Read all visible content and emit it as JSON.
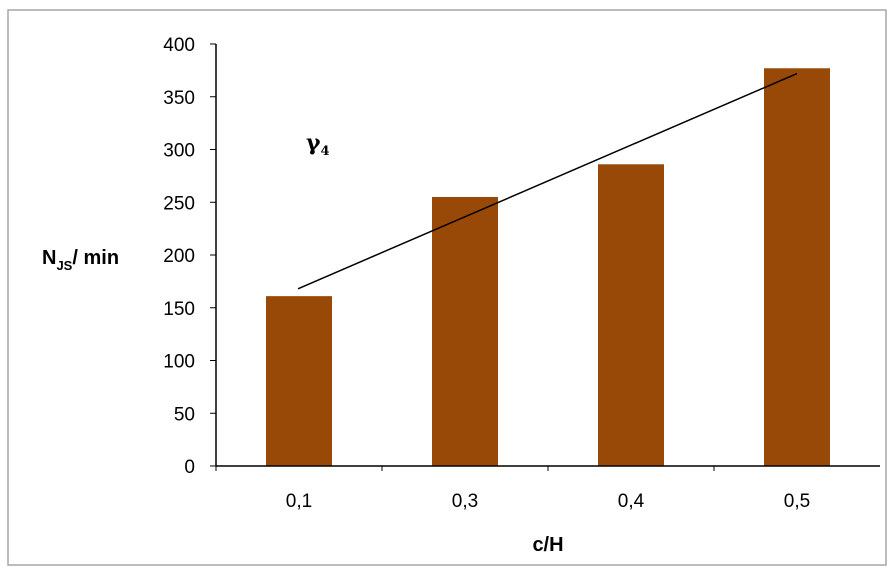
{
  "chart_data": {
    "type": "bar",
    "categories": [
      "0,1",
      "0,3",
      "0,4",
      "0,5"
    ],
    "series": [
      {
        "values": [
          161,
          255,
          286,
          377
        ]
      }
    ],
    "trendline": {
      "type": "linear",
      "start": 168,
      "end": 372
    },
    "ylabel": {
      "main": "N",
      "sub": "JS",
      "rest": "/ min"
    },
    "xlabel": "c/H",
    "annotation": {
      "symbol": "γ",
      "sub": "4"
    },
    "ylim": [
      0,
      400
    ],
    "yticks": [
      0,
      50,
      100,
      150,
      200,
      250,
      300,
      350,
      400
    ],
    "colors": {
      "bar": "#984807",
      "trend": "#000000"
    },
    "grid": false,
    "legend": "none"
  }
}
